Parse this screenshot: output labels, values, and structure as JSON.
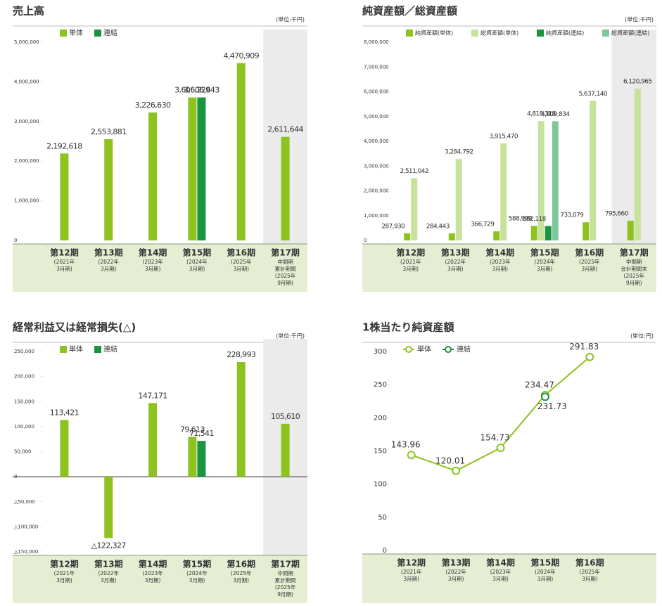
{
  "chart_data": [
    {
      "type": "bar",
      "title": "売上高",
      "unit": "(単位:千円)",
      "categories": [
        "第12期",
        "第13期",
        "第14期",
        "第15期",
        "第16期",
        "第17期"
      ],
      "category_notes": [
        [
          "(2021年",
          "3月期)"
        ],
        [
          "(2022年",
          "3月期)"
        ],
        [
          "(2023年",
          "3月期)"
        ],
        [
          "(2024年",
          "3月期)"
        ],
        [
          "(2025年",
          "3月期)"
        ],
        [
          "中間期",
          "累計期間",
          "(2025年",
          "9月期)"
        ]
      ],
      "series": [
        {
          "name": "単体",
          "color": "#8dc21f",
          "values": [
            2192618,
            2553881,
            3226630,
            3606229,
            4470909,
            2611644
          ],
          "value_labels": [
            "2,192,618",
            "2,553,881",
            "3,226,630",
            "3,606,229",
            "4,470,909",
            "2,611,644"
          ]
        },
        {
          "name": "連結",
          "color": "#1a9440",
          "values": [
            null,
            null,
            null,
            3606643,
            null,
            null
          ],
          "value_labels": [
            null,
            null,
            null,
            "3,606,643",
            null,
            null
          ]
        }
      ],
      "ylim": [
        0,
        5000000
      ],
      "yticks": [
        0,
        {
          "value": 1000000,
          "label": "1,000,000"
        },
        {
          "value": 2000000,
          "label": "2,000,000"
        },
        {
          "value": 3000000,
          "label": "3,000,000"
        },
        {
          "value": 4000000,
          "label": "4,000,000"
        },
        {
          "value": 5000000,
          "label": "5,000,000"
        }
      ]
    },
    {
      "type": "bar",
      "title": "純資産額／総資産額",
      "unit": "(単位:千円)",
      "categories": [
        "第12期",
        "第13期",
        "第14期",
        "第15期",
        "第16期",
        "第17期"
      ],
      "category_notes": [
        [
          "(2021年",
          "3月期)"
        ],
        [
          "(2022年",
          "3月期)"
        ],
        [
          "(2023年",
          "3月期)"
        ],
        [
          "(2024年",
          "3月期)"
        ],
        [
          "(2025年",
          "3月期)"
        ],
        [
          "中間期",
          "会計期間末",
          "(2025年",
          "9月期)"
        ]
      ],
      "series": [
        {
          "name": "純資産額(単体)",
          "color": "#8dc21f",
          "values": [
            287930,
            284443,
            366729,
            588999,
            733079,
            795660
          ],
          "value_labels": [
            "287,930",
            "284,443",
            "366,729",
            "588,999",
            "733,079",
            "795,660"
          ]
        },
        {
          "name": "総資産額(単体)",
          "color": "#c6e29b",
          "values": [
            2511042,
            3284792,
            3915470,
            4818318,
            5637140,
            6120965
          ],
          "value_labels": [
            "2,511,042",
            "3,284,792",
            "3,915,470",
            "4,818,318",
            "5,637,140",
            "6,120,965"
          ]
        },
        {
          "name": "純資産額(連結)",
          "color": "#1a9440",
          "values": [
            null,
            null,
            null,
            582118,
            null,
            null
          ],
          "value_labels": [
            null,
            null,
            null,
            "582,118",
            null,
            null
          ]
        },
        {
          "name": "総資産額(連結)",
          "color": "#7fc79a",
          "values": [
            null,
            null,
            null,
            4809834,
            null,
            null
          ],
          "value_labels": [
            null,
            null,
            null,
            "4,809,834",
            null,
            null
          ]
        }
      ],
      "ylim": [
        0,
        8000000
      ],
      "yticks": [
        0,
        {
          "value": 1000000,
          "label": "1,000,000"
        },
        {
          "value": 2000000,
          "label": "2,000,000"
        },
        {
          "value": 3000000,
          "label": "3,000,000"
        },
        {
          "value": 4000000,
          "label": "4,000,000"
        },
        {
          "value": 5000000,
          "label": "5,000,000"
        },
        {
          "value": 6000000,
          "label": "6,000,000"
        },
        {
          "value": 7000000,
          "label": "7,000,000"
        },
        {
          "value": 8000000,
          "label": "8,000,000"
        }
      ]
    },
    {
      "type": "bar",
      "title": "経常利益又は経常損失(△)",
      "unit": "(単位:千円)",
      "categories": [
        "第12期",
        "第13期",
        "第14期",
        "第15期",
        "第16期",
        "第17期"
      ],
      "category_notes": [
        [
          "(2021年",
          "3月期)"
        ],
        [
          "(2022年",
          "3月期)"
        ],
        [
          "(2023年",
          "3月期)"
        ],
        [
          "(2024年",
          "3月期)"
        ],
        [
          "(2025年",
          "3月期)"
        ],
        [
          "中間期",
          "累計期間",
          "(2025年",
          "9月期)"
        ]
      ],
      "series": [
        {
          "name": "単体",
          "color": "#8dc21f",
          "values": [
            113421,
            -122327,
            147171,
            79613,
            228993,
            105610
          ],
          "value_labels": [
            "113,421",
            "△122,327",
            "147,171",
            "79,613",
            "228,993",
            "105,610"
          ]
        },
        {
          "name": "連結",
          "color": "#1a9440",
          "values": [
            null,
            null,
            null,
            71541,
            null,
            null
          ],
          "value_labels": [
            null,
            null,
            null,
            "71,541",
            null,
            null
          ]
        }
      ],
      "ylim": [
        -150000,
        250000
      ],
      "yticks": [
        {
          "value": -150000,
          "label": "△150,000"
        },
        {
          "value": -100000,
          "label": "△100,000"
        },
        {
          "value": -50000,
          "label": "△50,000"
        },
        0,
        {
          "value": 50000,
          "label": "50,000"
        },
        {
          "value": 100000,
          "label": "100,000"
        },
        {
          "value": 150000,
          "label": "150,000"
        },
        {
          "value": 200000,
          "label": "200,000"
        },
        {
          "value": 250000,
          "label": "250,000"
        }
      ]
    },
    {
      "type": "line",
      "title": "1株当たり純資産額",
      "unit": "(単位:円)",
      "categories": [
        "第12期",
        "第13期",
        "第14期",
        "第15期",
        "第16期"
      ],
      "category_notes": [
        [
          "(2021年",
          "3月期)"
        ],
        [
          "(2022年",
          "3月期)"
        ],
        [
          "(2023年",
          "3月期)"
        ],
        [
          "(2024年",
          "3月期)"
        ],
        [
          "(2025年",
          "3月期)"
        ]
      ],
      "series": [
        {
          "name": "単体",
          "color": "#8dc21f",
          "values": [
            143.96,
            120.01,
            154.73,
            234.47,
            291.83
          ]
        },
        {
          "name": "連結",
          "color": "#1a9440",
          "values": [
            null,
            null,
            null,
            231.73,
            null
          ]
        }
      ],
      "ylim": [
        0,
        300
      ],
      "yticks": [
        0,
        50,
        100,
        150,
        200,
        250,
        300
      ]
    }
  ]
}
